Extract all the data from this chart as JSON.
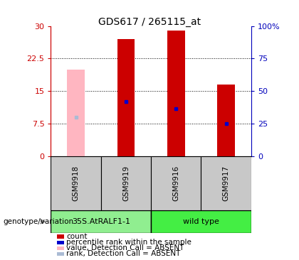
{
  "title": "GDS617 / 265115_at",
  "samples": [
    "GSM9918",
    "GSM9919",
    "GSM9916",
    "GSM9917"
  ],
  "groups": [
    "35S.AtRALF1-1",
    "35S.AtRALF1-1",
    "wild type",
    "wild type"
  ],
  "count_values": [
    null,
    27.0,
    29.0,
    16.5
  ],
  "count_absent": [
    20.0,
    null,
    null,
    null
  ],
  "rank_values": [
    null,
    12.5,
    11.0,
    7.5
  ],
  "rank_absent": [
    9.0,
    null,
    null,
    null
  ],
  "ylim_left": [
    0,
    30
  ],
  "ylim_right": [
    0,
    100
  ],
  "yticks_left": [
    0,
    7.5,
    15,
    22.5,
    30
  ],
  "yticks_right": [
    0,
    25,
    50,
    75,
    100
  ],
  "bar_width": 0.35,
  "bar_color_present": "#CC0000",
  "bar_color_absent": "#FFB6C1",
  "rank_color_present": "#0000CC",
  "rank_color_absent": "#AABBD4",
  "grid_values": [
    7.5,
    15,
    22.5
  ],
  "group1_label": "35S.AtRALF1-1",
  "group2_label": "wild type",
  "group1_color": "#90EE90",
  "group2_color": "#44EE44",
  "genotype_label": "genotype/variation",
  "legend_items": [
    {
      "label": "count",
      "color": "#CC0000"
    },
    {
      "label": "percentile rank within the sample",
      "color": "#0000CC"
    },
    {
      "label": "value, Detection Call = ABSENT",
      "color": "#FFB6C1"
    },
    {
      "label": "rank, Detection Call = ABSENT",
      "color": "#AABBD4"
    }
  ],
  "left_axis_color": "#CC0000",
  "right_axis_color": "#0000BB",
  "title_fontsize": 10,
  "tick_fontsize": 8,
  "label_fontsize": 8,
  "legend_fontsize": 7.5
}
